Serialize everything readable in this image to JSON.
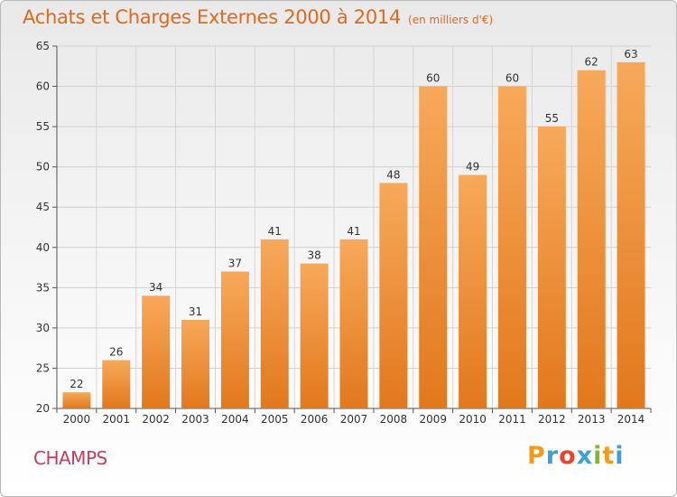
{
  "header": {
    "title": "Achats et Charges Externes 2000 à 2014",
    "unit": "(en milliers d'€)"
  },
  "footer": {
    "commune": "CHAMPS",
    "logo_letters": [
      "P",
      "r",
      "o",
      "x",
      "i",
      "t",
      "i"
    ],
    "logo_colors": [
      "#f39a1c",
      "#3aa0d8",
      "#e8452c",
      "#3aa0d8",
      "#86b734",
      "#f39a1c",
      "#3aa0d8"
    ]
  },
  "chart_data": {
    "type": "bar",
    "title": "Achats et Charges Externes 2000 à 2014",
    "subtitle": "(en milliers d'€)",
    "categories": [
      "2000",
      "2001",
      "2002",
      "2003",
      "2004",
      "2005",
      "2006",
      "2007",
      "2008",
      "2009",
      "2010",
      "2011",
      "2012",
      "2013",
      "2014"
    ],
    "values": [
      22,
      26,
      34,
      31,
      37,
      41,
      38,
      41,
      48,
      60,
      49,
      60,
      55,
      62,
      63
    ],
    "ylim": [
      20,
      65
    ],
    "yticks": [
      20,
      25,
      30,
      35,
      40,
      45,
      50,
      55,
      60,
      65
    ],
    "grid": true,
    "bar_color_top": "#f7a95a",
    "bar_color_bottom": "#e2781c",
    "xlabel": "",
    "ylabel": ""
  }
}
